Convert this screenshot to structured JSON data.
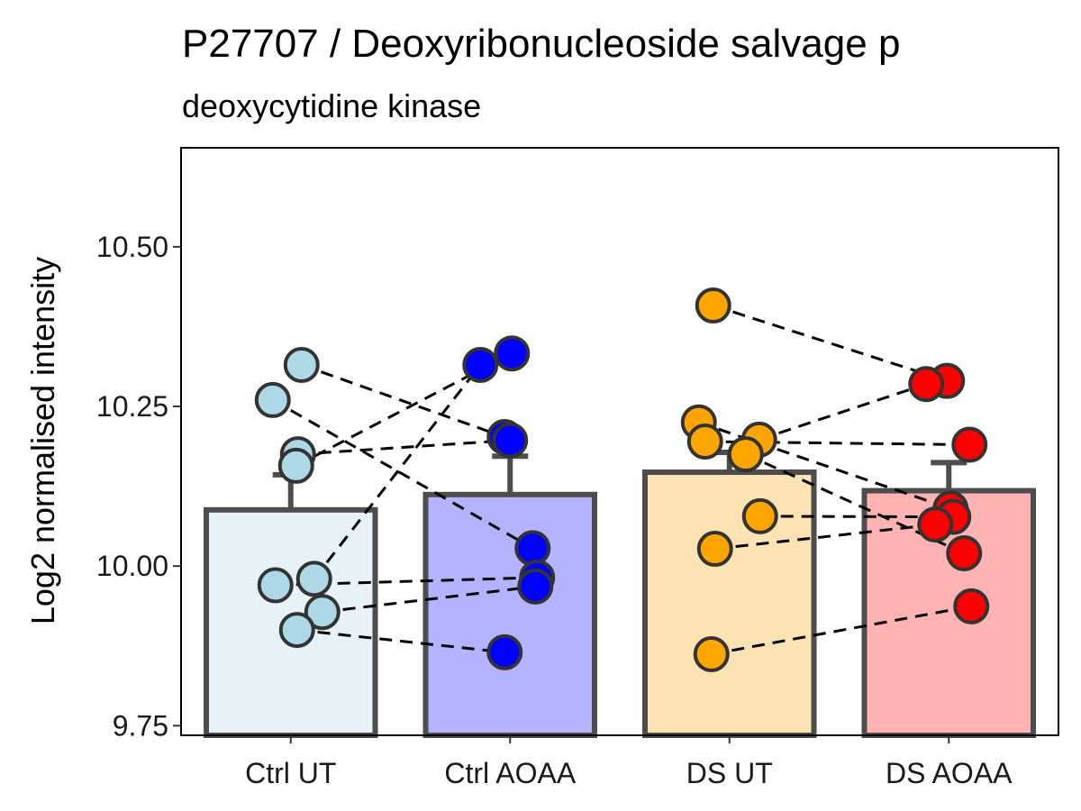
{
  "chart_data": {
    "type": "bar",
    "title": "P27707 / Deoxyribonucleoside salvage p",
    "subtitle": "deoxycytidine kinase",
    "xlabel": "",
    "ylabel": "Log2 normalised intensity",
    "ylim": [
      9.735,
      10.655
    ],
    "yticks": [
      9.75,
      10.0,
      10.25,
      10.5
    ],
    "ytick_labels": [
      "9.75",
      "10.00",
      "10.25",
      "10.50"
    ],
    "grid": false,
    "legend": "none",
    "categories": [
      "Ctrl UT",
      "Ctrl AOAA",
      "DS UT",
      "DS AOAA"
    ],
    "bar_colors": [
      "#e6f2f8",
      "#b3b3ff",
      "#fde3b3",
      "#ffb3b3"
    ],
    "point_colors": [
      "#add8e6",
      "#0000ff",
      "#ffa500",
      "#ff0000"
    ],
    "bars": [
      {
        "category": "Ctrl UT",
        "mean": 10.088,
        "error_upper": 10.143
      },
      {
        "category": "Ctrl AOAA",
        "mean": 10.112,
        "error_upper": 10.172
      },
      {
        "category": "DS UT",
        "mean": 10.147,
        "error_upper": 10.178
      },
      {
        "category": "DS AOAA",
        "mean": 10.118,
        "error_upper": 10.162
      }
    ],
    "points": [
      {
        "category": "Ctrl UT",
        "values": [
          10.315,
          10.26,
          10.175,
          10.157,
          9.98,
          9.97,
          9.928,
          9.9
        ]
      },
      {
        "category": "Ctrl AOAA",
        "values": [
          10.333,
          10.315,
          10.202,
          10.197,
          10.028,
          9.982,
          9.968,
          9.865
        ]
      },
      {
        "category": "DS UT",
        "values": [
          10.408,
          10.225,
          10.198,
          10.195,
          10.175,
          10.078,
          10.027,
          9.862
        ]
      },
      {
        "category": "DS AOAA",
        "values": [
          10.29,
          10.285,
          10.19,
          10.09,
          10.077,
          10.065,
          10.02,
          9.937
        ]
      }
    ],
    "pairs": [
      {
        "from": "Ctrl UT",
        "to": "Ctrl AOAA",
        "y_from": 10.315,
        "y_to": 10.202
      },
      {
        "from": "Ctrl UT",
        "to": "Ctrl AOAA",
        "y_from": 10.26,
        "y_to": 10.028
      },
      {
        "from": "Ctrl UT",
        "to": "Ctrl AOAA",
        "y_from": 10.175,
        "y_to": 10.197
      },
      {
        "from": "Ctrl UT",
        "to": "Ctrl AOAA",
        "y_from": 10.157,
        "y_to": 10.333
      },
      {
        "from": "Ctrl UT",
        "to": "Ctrl AOAA",
        "y_from": 9.98,
        "y_to": 10.315
      },
      {
        "from": "Ctrl UT",
        "to": "Ctrl AOAA",
        "y_from": 9.97,
        "y_to": 9.982
      },
      {
        "from": "Ctrl UT",
        "to": "Ctrl AOAA",
        "y_from": 9.928,
        "y_to": 9.968
      },
      {
        "from": "Ctrl UT",
        "to": "Ctrl AOAA",
        "y_from": 9.9,
        "y_to": 9.865
      },
      {
        "from": "DS UT",
        "to": "DS AOAA",
        "y_from": 10.408,
        "y_to": 10.29
      },
      {
        "from": "DS UT",
        "to": "DS AOAA",
        "y_from": 10.225,
        "y_to": 10.09
      },
      {
        "from": "DS UT",
        "to": "DS AOAA",
        "y_from": 10.198,
        "y_to": 10.285
      },
      {
        "from": "DS UT",
        "to": "DS AOAA",
        "y_from": 10.195,
        "y_to": 10.19
      },
      {
        "from": "DS UT",
        "to": "DS AOAA",
        "y_from": 10.175,
        "y_to": 10.02
      },
      {
        "from": "DS UT",
        "to": "DS AOAA",
        "y_from": 10.078,
        "y_to": 10.077
      },
      {
        "from": "DS UT",
        "to": "DS AOAA",
        "y_from": 10.027,
        "y_to": 10.065
      },
      {
        "from": "DS UT",
        "to": "DS AOAA",
        "y_from": 9.862,
        "y_to": 9.937
      }
    ]
  }
}
